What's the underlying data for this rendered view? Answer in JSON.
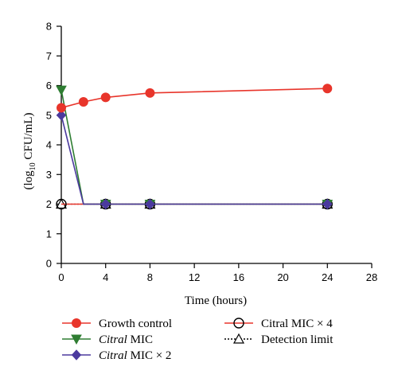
{
  "chart_data": {
    "type": "line",
    "xlabel": "Time (hours)",
    "ylabel_main": "(log",
    "ylabel_sub": "10",
    "ylabel_rest": " CFU/mL)",
    "xlim": [
      0,
      28
    ],
    "ylim": [
      0,
      8
    ],
    "xticks": [
      0,
      4,
      8,
      12,
      16,
      20,
      24,
      28
    ],
    "yticks": [
      0,
      1,
      2,
      3,
      4,
      5,
      6,
      7,
      8
    ],
    "legend_position": "bottom",
    "series": [
      {
        "name": "Growth control",
        "italic": "",
        "rest": "Growth control",
        "color": "#e8352b",
        "marker": "circle-filled",
        "line": "solid",
        "x": [
          0,
          2,
          4,
          8,
          24
        ],
        "y": [
          5.25,
          5.45,
          5.6,
          5.75,
          5.9
        ]
      },
      {
        "name": "Citral MIC",
        "italic": "Citral",
        "rest": " MIC",
        "color": "#2e7d32",
        "marker": "triangle-down",
        "line": "solid",
        "x": [
          0,
          2,
          4,
          8,
          24
        ],
        "y": [
          5.85,
          2.0,
          2.0,
          2.0,
          2.0
        ]
      },
      {
        "name": "Citral MIC × 2",
        "italic": "Citral",
        "rest": " MIC × 2",
        "color": "#4b3a9e",
        "marker": "diamond",
        "line": "solid",
        "x": [
          0,
          2,
          4,
          8,
          24
        ],
        "y": [
          5.0,
          2.0,
          2.0,
          2.0,
          2.0
        ]
      },
      {
        "name": "Citral MIC × 4",
        "italic": "",
        "rest": "Citral MIC × 4",
        "color": "#e8352b",
        "marker": "circle-open",
        "line": "solid",
        "x": [
          0,
          4,
          8,
          24
        ],
        "y": [
          2.0,
          2.0,
          2.0,
          2.0
        ]
      },
      {
        "name": "Detection limit",
        "italic": "",
        "rest": "Detection limit",
        "color": "#000000",
        "marker": "triangle-open",
        "line": "dotted",
        "x": [
          0,
          4,
          8,
          24
        ],
        "y": [
          2.0,
          2.0,
          2.0,
          2.0
        ]
      }
    ]
  }
}
